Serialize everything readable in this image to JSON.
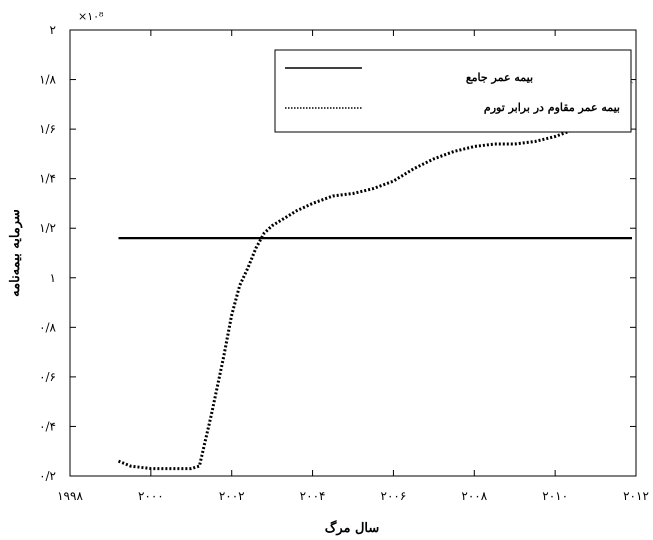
{
  "chart_data": {
    "type": "line",
    "title": "",
    "xlabel": "سال مرگ",
    "ylabel": "سرمایه بیمه‌نامه",
    "y_exponent_label": "×۱۰⁸",
    "xlim": [
      1998,
      2012
    ],
    "ylim": [
      0.2,
      2.0
    ],
    "x_tick_values": [
      1998,
      2000,
      2002,
      2004,
      2006,
      2008,
      2010,
      2012
    ],
    "x_tick_labels": [
      "۱۹۹۸",
      "۲۰۰۰",
      "۲۰۰۲",
      "۲۰۰۴",
      "۲۰۰۶",
      "۲۰۰۸",
      "۲۰۱۰",
      "۲۰۱۲"
    ],
    "y_tick_values": [
      0.2,
      0.4,
      0.6,
      0.8,
      1.0,
      1.2,
      1.4,
      1.6,
      1.8,
      2.0
    ],
    "y_tick_labels": [
      "۰/۲",
      "۰/۴",
      "۰/۶",
      "۰/۸",
      "۱",
      "۱/۲",
      "۱/۴",
      "۱/۶",
      "۱/۸",
      "۲"
    ],
    "grid": false,
    "legend_position": "top-right",
    "series": [
      {
        "name": "بیمه عمر جامع",
        "style": "solid",
        "color": "#000000",
        "x": [
          1999.2,
          2011.9
        ],
        "y": [
          1.16,
          1.16
        ]
      },
      {
        "name": "بیمه عمر مقاوم در برابر تورم",
        "style": "dotted",
        "color": "#000000",
        "x": [
          1999.2,
          1999.5,
          2000,
          2000.5,
          2001.0,
          2001.2,
          2001.5,
          2001.8,
          2002.0,
          2002.2,
          2002.4,
          2002.6,
          2002.8,
          2003.0,
          2003.3,
          2003.6,
          2004.0,
          2004.5,
          2005.0,
          2005.5,
          2006.0,
          2006.5,
          2007.0,
          2007.5,
          2008.0,
          2008.5,
          2009.0,
          2009.5,
          2010.0,
          2010.5,
          2011.0,
          2011.5,
          2011.9
        ],
        "y": [
          0.26,
          0.24,
          0.23,
          0.23,
          0.23,
          0.24,
          0.45,
          0.68,
          0.85,
          0.97,
          1.04,
          1.12,
          1.18,
          1.21,
          1.24,
          1.27,
          1.3,
          1.33,
          1.34,
          1.36,
          1.39,
          1.44,
          1.48,
          1.51,
          1.53,
          1.54,
          1.54,
          1.55,
          1.57,
          1.6,
          1.66,
          1.73,
          1.79
        ]
      }
    ]
  }
}
